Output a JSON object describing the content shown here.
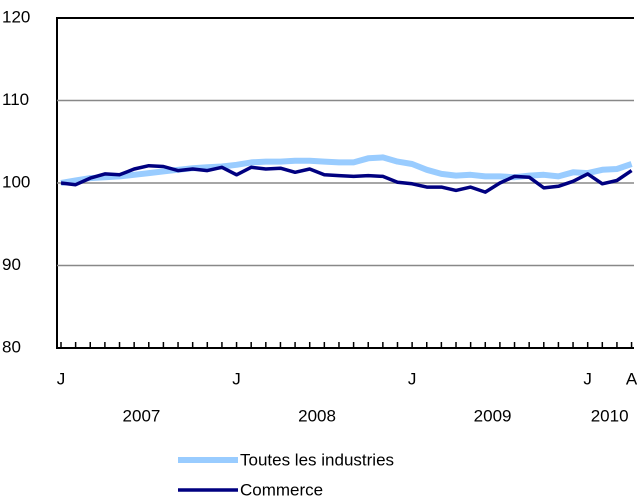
{
  "chart_data": {
    "type": "line",
    "categories": [
      "J",
      null,
      null,
      null,
      null,
      null,
      null,
      null,
      null,
      null,
      null,
      null,
      "J",
      null,
      null,
      null,
      null,
      null,
      null,
      null,
      null,
      null,
      null,
      null,
      "J",
      null,
      null,
      null,
      null,
      null,
      null,
      null,
      null,
      null,
      null,
      null,
      "J",
      null,
      null,
      "A"
    ],
    "year_labels": [
      "2007",
      "2008",
      "2009",
      "2010"
    ],
    "series": [
      {
        "name": "Toutes les industries",
        "color": "#99ccff",
        "values": [
          100.0,
          100.3,
          100.6,
          100.7,
          100.8,
          101.0,
          101.2,
          101.4,
          101.6,
          101.8,
          101.9,
          102.0,
          102.2,
          102.5,
          102.6,
          102.6,
          102.7,
          102.7,
          102.6,
          102.5,
          102.5,
          103.0,
          103.1,
          102.6,
          102.3,
          101.6,
          101.1,
          100.9,
          101.0,
          100.8,
          100.8,
          100.7,
          100.9,
          101.0,
          100.8,
          101.3,
          101.2,
          101.6,
          101.7,
          102.3
        ]
      },
      {
        "name": "Commerce",
        "color": "#000080",
        "values": [
          100.0,
          99.8,
          100.6,
          101.1,
          101.0,
          101.7,
          102.1,
          102.0,
          101.5,
          101.7,
          101.5,
          101.9,
          101.0,
          101.9,
          101.7,
          101.8,
          101.3,
          101.7,
          101.0,
          100.9,
          100.8,
          100.9,
          100.8,
          100.1,
          99.9,
          99.5,
          99.5,
          99.1,
          99.5,
          98.9,
          100.0,
          100.8,
          100.7,
          99.4,
          99.6,
          100.2,
          101.1,
          99.9,
          100.3,
          101.5
        ]
      }
    ],
    "ylim": [
      80,
      120
    ],
    "yticks": [
      80,
      90,
      100,
      110,
      120
    ],
    "grid": true
  }
}
